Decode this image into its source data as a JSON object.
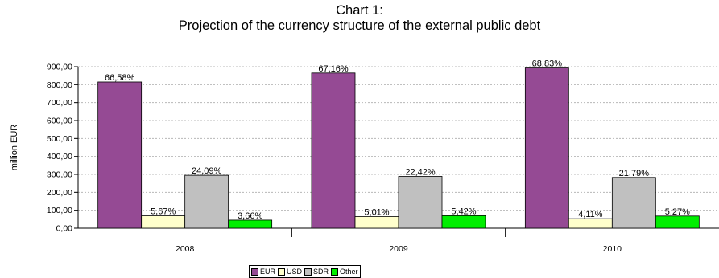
{
  "chart_data": {
    "type": "bar",
    "title": "Chart 1:",
    "subtitle": "Projection of the currency structure of the external public debt",
    "ylabel": "million EUR",
    "xlabel": "",
    "ylim": [
      0,
      900
    ],
    "yticks": [
      "0,00",
      "100,00",
      "200,00",
      "300,00",
      "400,00",
      "500,00",
      "600,00",
      "700,00",
      "800,00",
      "900,00"
    ],
    "categories": [
      "2008",
      "2009",
      "2010"
    ],
    "series": [
      {
        "name": "EUR",
        "color": "#954a94",
        "values": [
          815,
          865,
          893
        ],
        "labels": [
          "66,58%",
          "67,16%",
          "68,83%"
        ]
      },
      {
        "name": "USD",
        "color": "#ffffcc",
        "values": [
          69,
          65,
          53
        ],
        "labels": [
          "5,67%",
          "5,01%",
          "4,11%"
        ]
      },
      {
        "name": "SDR",
        "color": "#c0c0c0",
        "values": [
          295,
          289,
          283
        ],
        "labels": [
          "24,09%",
          "22,42%",
          "21,79%"
        ]
      },
      {
        "name": "Other",
        "color": "#00ee00",
        "values": [
          45,
          70,
          68
        ],
        "labels": [
          "3,66%",
          "5,42%",
          "5,27%"
        ]
      }
    ],
    "grid": true,
    "legend_position": "bottom"
  }
}
